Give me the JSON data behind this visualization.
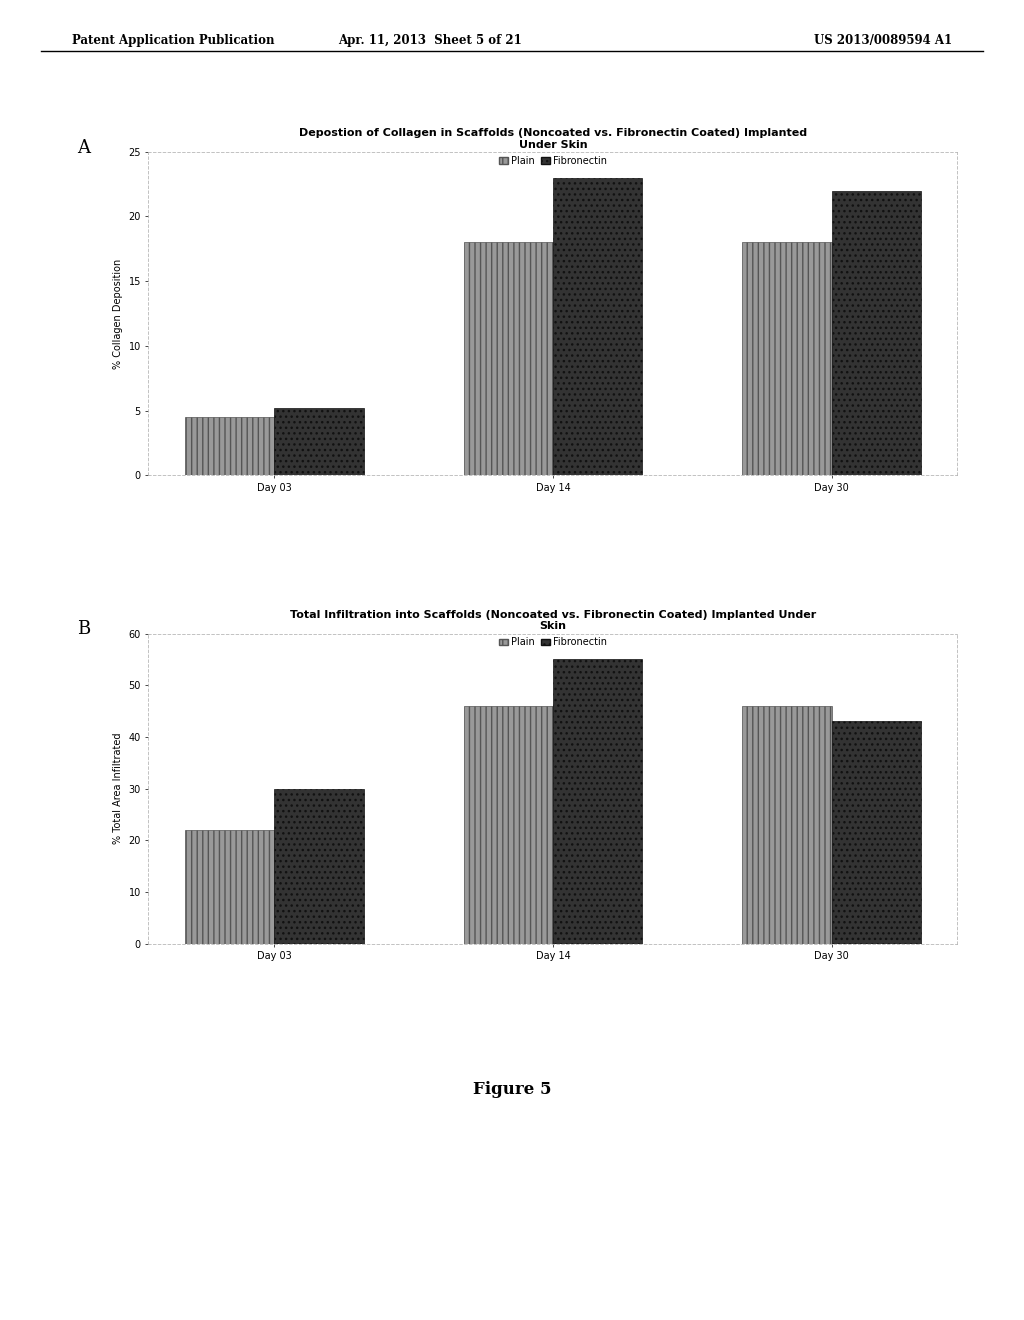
{
  "chart_A": {
    "title_line1": "Depostion of Collagen in Scaffolds (Noncoated vs. Fibronectin Coated) Implanted",
    "title_line2": "Under Skin",
    "ylabel": "% Collagen Deposition",
    "categories": [
      "Day 03",
      "Day 14",
      "Day 30"
    ],
    "plain_values": [
      4.5,
      18.0,
      18.0
    ],
    "fibronectin_values": [
      5.2,
      23.0,
      22.0
    ],
    "ylim": [
      0,
      25
    ],
    "yticks": [
      0,
      5,
      10,
      15,
      20,
      25
    ],
    "plain_color": "#999999",
    "fibronectin_color": "#333333",
    "legend_plain": "Plain",
    "legend_fibronectin": "Fibronectin"
  },
  "chart_B": {
    "title_line1": "Total Infiltration into Scaffolds (Noncoated vs. Fibronectin Coated) Implanted Under",
    "title_line2": "Skin",
    "ylabel": "% Total Area Infiltrated",
    "categories": [
      "Day 03",
      "Day 14",
      "Day 30"
    ],
    "plain_values": [
      22.0,
      46.0,
      46.0
    ],
    "fibronectin_values": [
      30.0,
      55.0,
      43.0
    ],
    "ylim": [
      0,
      60
    ],
    "yticks": [
      0,
      10,
      20,
      30,
      40,
      50,
      60
    ],
    "plain_color": "#999999",
    "fibronectin_color": "#333333",
    "legend_plain": "Plain",
    "legend_fibronectin": "Fibronectin"
  },
  "header_left": "Patent Application Publication",
  "header_mid": "Apr. 11, 2013  Sheet 5 of 21",
  "header_right": "US 2013/0089594 A1",
  "figure_label": "Figure 5",
  "bg_color": "#ffffff",
  "chart_bg": "#ffffff",
  "bar_width": 0.32,
  "title_fontsize": 8,
  "axis_fontsize": 7,
  "tick_fontsize": 7,
  "legend_fontsize": 7
}
